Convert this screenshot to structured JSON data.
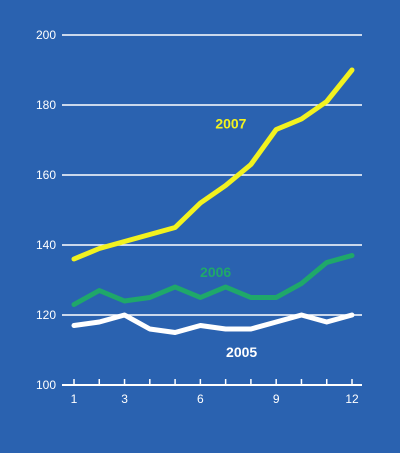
{
  "colors": {
    "background": "#2a62b0",
    "grid": "#ffffff",
    "axis": "#ffffff"
  },
  "chart_data": {
    "type": "line",
    "title": "",
    "xlabel": "",
    "ylabel": "",
    "x": [
      1,
      2,
      3,
      4,
      5,
      6,
      7,
      8,
      9,
      10,
      11,
      12
    ],
    "xlim": [
      1,
      12
    ],
    "ylim": [
      100,
      200
    ],
    "y_ticks": [
      100,
      120,
      140,
      160,
      180,
      200
    ],
    "x_tick_labels": [
      "1",
      "3",
      "6",
      "9",
      "12"
    ],
    "x_tick_label_positions": [
      1,
      3,
      6,
      9,
      12
    ],
    "grid": true,
    "series": [
      {
        "name": "2007",
        "color": "#f2f21f",
        "values": [
          136,
          139,
          141,
          143,
          145,
          152,
          157,
          163,
          173,
          176,
          181,
          190
        ]
      },
      {
        "name": "2006",
        "color": "#1fa86a",
        "values": [
          123,
          127,
          124,
          125,
          128,
          125,
          128,
          125,
          125,
          129,
          135,
          137
        ]
      },
      {
        "name": "2005",
        "color": "#ffffff",
        "values": [
          117,
          118,
          120,
          116,
          115,
          117,
          116,
          116,
          118,
          120,
          118,
          120
        ]
      }
    ]
  }
}
